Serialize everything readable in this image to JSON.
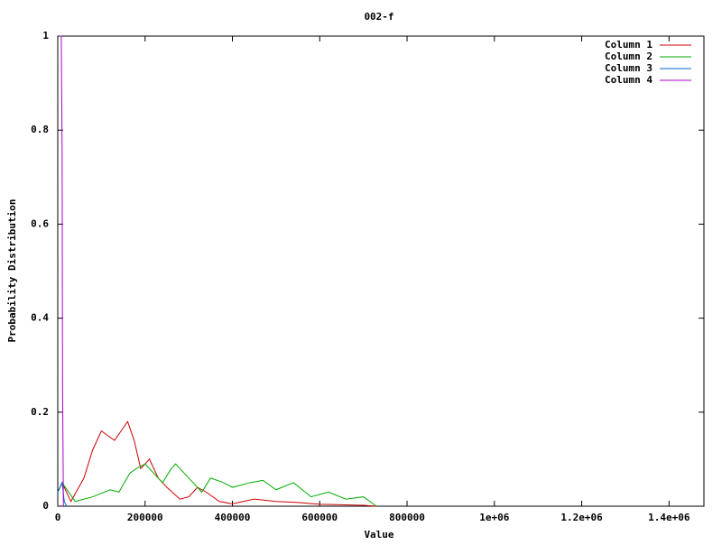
{
  "chart_data": {
    "type": "line",
    "title": "002-f",
    "x_label": "Value",
    "y_label": "Probability Distribution",
    "xlim": [
      0,
      1480000
    ],
    "ylim": [
      0,
      1
    ],
    "xticks": [
      0,
      200000,
      400000,
      600000,
      800000,
      {
        "value": 1000000,
        "label": "1e+06"
      },
      {
        "value": 1200000,
        "label": "1.2e+06"
      },
      {
        "value": 1400000,
        "label": "1.4e+06"
      }
    ],
    "yticks": [
      0,
      0.2,
      0.4,
      0.6,
      0.8,
      1
    ],
    "legend": "top-right",
    "series": [
      {
        "name": "Column 1",
        "color": "#cc0000",
        "x": [
          0,
          10000,
          30000,
          60000,
          80000,
          100000,
          115000,
          130000,
          145000,
          160000,
          175000,
          190000,
          210000,
          230000,
          250000,
          280000,
          300000,
          320000,
          340000,
          370000,
          400000,
          450000,
          500000,
          550000,
          600000,
          650000,
          700000,
          730000
        ],
        "values": [
          0.03,
          0.05,
          0.01,
          0.06,
          0.12,
          0.16,
          0.15,
          0.14,
          0.16,
          0.18,
          0.14,
          0.08,
          0.1,
          0.06,
          0.04,
          0.015,
          0.02,
          0.04,
          0.03,
          0.01,
          0.005,
          0.015,
          0.01,
          0.008,
          0.004,
          0.003,
          0.002,
          0
        ]
      },
      {
        "name": "Column 2",
        "color": "#00aa00",
        "x": [
          0,
          10000,
          40000,
          80000,
          120000,
          140000,
          165000,
          180000,
          200000,
          220000,
          240000,
          260000,
          270000,
          290000,
          310000,
          330000,
          350000,
          380000,
          400000,
          440000,
          470000,
          500000,
          540000,
          580000,
          620000,
          660000,
          700000,
          730000
        ],
        "values": [
          0.03,
          0.05,
          0.01,
          0.02,
          0.035,
          0.03,
          0.07,
          0.08,
          0.09,
          0.07,
          0.05,
          0.08,
          0.09,
          0.07,
          0.05,
          0.03,
          0.06,
          0.05,
          0.04,
          0.05,
          0.055,
          0.035,
          0.05,
          0.02,
          0.03,
          0.015,
          0.02,
          0
        ]
      },
      {
        "name": "Column 3",
        "color": "#0066cc",
        "x": [
          0,
          5000,
          10000,
          15000,
          20000
        ],
        "values": [
          0.03,
          0.04,
          0.05,
          0.01,
          0
        ]
      },
      {
        "name": "Column 4",
        "color": "#aa00cc",
        "x": [
          4000,
          8000,
          10000,
          11000,
          13000
        ],
        "values": [
          1,
          1,
          0.75,
          0.26,
          0
        ]
      }
    ]
  }
}
